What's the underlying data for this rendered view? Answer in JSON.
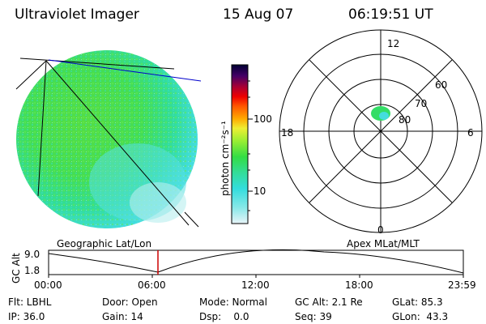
{
  "header": {
    "title": "Ultraviolet Imager",
    "date": "15 Aug 07",
    "time": "06:19:51 UT"
  },
  "colorbar": {
    "unit_label": "photon cm⁻²s⁻¹",
    "ticks": [
      "100",
      "10"
    ]
  },
  "polar_plot": {
    "mlt_labels": {
      "top": "12",
      "left": "18",
      "right": "6",
      "bottom": "0"
    },
    "lat_labels": [
      "60",
      "70",
      "80"
    ]
  },
  "timeline": {
    "left_caption": "Geographic Lat/Lon",
    "right_caption": "Apex MLat/MLT",
    "y_axis_label": "GC Alt",
    "y_ticks": [
      "9.0",
      "1.8"
    ],
    "x_ticks": [
      "00:00",
      "06:00",
      "12:00",
      "18:00",
      "23:59"
    ]
  },
  "info_rows": [
    [
      "Flt: LBHL",
      "Door: Open",
      "Mode: Normal",
      "GC Alt: 2.1 Re",
      "GLat: 85.3"
    ],
    [
      "IP: 36.0",
      "Gain: 14",
      "Dsp:    0.0",
      "Seq: 39",
      "GLon:  43.3"
    ]
  ],
  "colors": {
    "auroral_green": "#33dd44",
    "auroral_cyan": "#33dddd",
    "marker_red": "#cc0000",
    "line_blue": "#0000cc"
  }
}
